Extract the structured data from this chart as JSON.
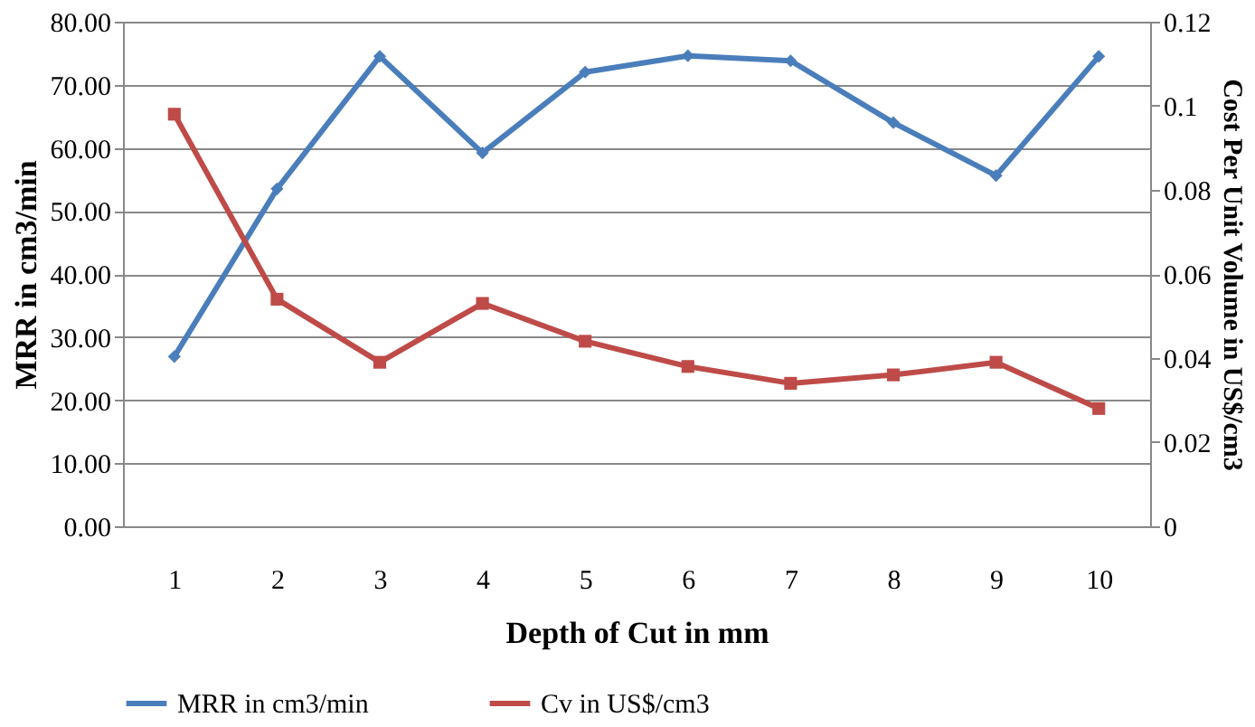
{
  "chart_data": {
    "type": "line",
    "xlabel": "Depth of Cut in mm",
    "ylabel": "MRR in cm3/min",
    "y2label": "Cost Per Unit Volume in US$/cm3",
    "categories": [
      "1",
      "2",
      "3",
      "4",
      "5",
      "6",
      "7",
      "8",
      "9",
      "10"
    ],
    "series": [
      {
        "name": "MRR in cm3/min",
        "color": "#4a7ebb",
        "marker": "diamond",
        "values": [
          26.9,
          53.5,
          74.5,
          59.2,
          72.0,
          74.6,
          73.8,
          64.0,
          55.6,
          74.5
        ]
      },
      {
        "name": "Cv in US$/cm3",
        "color": "#be4b48",
        "marker": "square",
        "axis": "y2",
        "values": [
          0.098,
          0.054,
          0.039,
          0.053,
          0.044,
          0.038,
          0.034,
          0.036,
          0.039,
          0.028
        ]
      }
    ],
    "ylim": [
      0,
      80
    ],
    "yticks": [
      {
        "value": 0,
        "label": "0.00"
      },
      {
        "value": 10,
        "label": "10.00"
      },
      {
        "value": 20,
        "label": "20.00"
      },
      {
        "value": 30,
        "label": "30.00"
      },
      {
        "value": 40,
        "label": "40.00"
      },
      {
        "value": 50,
        "label": "50.00"
      },
      {
        "value": 60,
        "label": "60.00"
      },
      {
        "value": 70,
        "label": "70.00"
      },
      {
        "value": 80,
        "label": "80.00"
      }
    ],
    "y2lim": [
      0,
      0.12
    ],
    "y2ticks": [
      0,
      0.02,
      0.04,
      0.06,
      0.08,
      0.1,
      0.12
    ],
    "grid": "y",
    "legend": "bottom",
    "line_style": "solid"
  }
}
